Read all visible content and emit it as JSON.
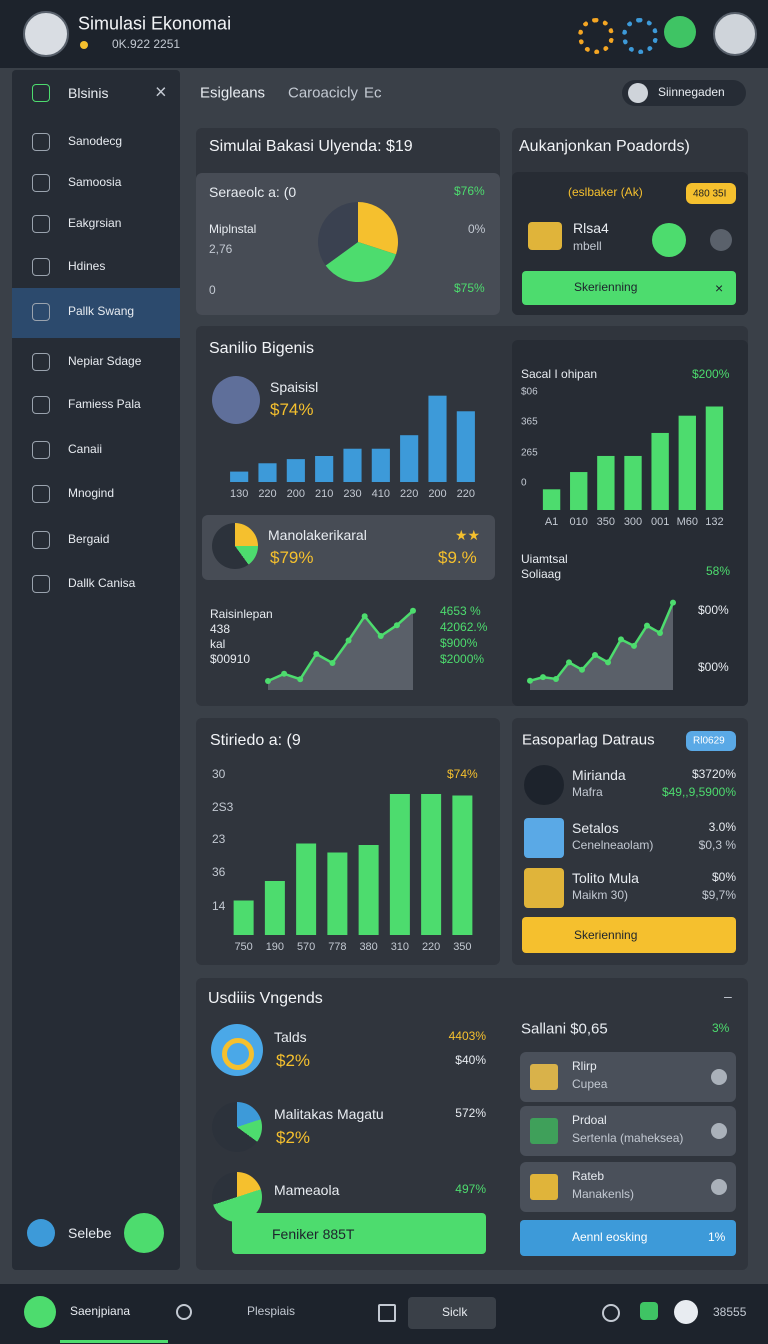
{
  "header": {
    "title": "Simulasi Ekonomai",
    "subtitle": "0K.922 2251"
  },
  "sidebar": {
    "title": "Blsinis",
    "items": [
      "Sanodecg",
      "Samoosia",
      "Eakgrsian",
      "Hdines",
      "Pallk Swang",
      "Nepiar Sdage",
      "Famiess Pala",
      "Canaii",
      "Mnogind",
      "Bergaid",
      "Dallk Canisa"
    ],
    "footer": "Selebe"
  },
  "tabs": [
    "Esigleans",
    "Caroacicly",
    "Ec"
  ],
  "user": "Siinnegaden",
  "panel1": {
    "title": "Simulai Bakasi Ulyenda: $19",
    "card_title": "Seraeolc a: (0",
    "label": "Miplnstal",
    "value": "2,76",
    "zero": "0",
    "right": [
      "$76%",
      "0%",
      "$75%"
    ],
    "pie": {
      "type": "pie",
      "values": [
        30,
        35,
        35
      ],
      "colors": [
        "#f5c02e",
        "#4ddc6e",
        "#3a4150"
      ]
    }
  },
  "panel2": {
    "title": "Aukanjonkan Poadords)",
    "tag": "(eslbaker (Ak)",
    "badge": "480 35I",
    "name": "Rlsa4",
    "sub": "mbell",
    "button": "Skerienning"
  },
  "panel3": {
    "title": "Sanilio Bigenis",
    "chart1": {
      "title": "Spaisisl",
      "value": "$74%",
      "type": "bar",
      "color": "#3d9ad9",
      "ylim": [
        0,
        100
      ],
      "values": [
        10,
        18,
        22,
        25,
        32,
        32,
        45,
        83,
        68
      ],
      "categories": [
        "130",
        "220",
        "200",
        "210",
        "230",
        "410",
        "220",
        "200",
        "220"
      ]
    },
    "chart2": {
      "title": "Sacal I ohipan",
      "value": "$200%",
      "ylabels": [
        "$06",
        "365",
        "265",
        "0"
      ],
      "type": "bar",
      "color": "#4ddc6e",
      "ylim": [
        0,
        100
      ],
      "values": [
        18,
        33,
        47,
        47,
        67,
        82,
        90
      ],
      "categories": [
        "A1",
        "010",
        "350",
        "300",
        "001",
        "M60",
        "132"
      ]
    },
    "card": {
      "title": "Manolakerikaral",
      "value": "$79%",
      "right": "$9.%"
    },
    "line1": {
      "labels": [
        "Raisinlepan",
        "438",
        "kal",
        "$00910"
      ],
      "right": [
        "4653 %",
        "42062.%",
        "$900%",
        "$2000%"
      ],
      "type": "line",
      "color": "#4ddc6e",
      "ylim": [
        0,
        100
      ],
      "values": [
        10,
        18,
        12,
        40,
        30,
        55,
        82,
        60,
        72,
        88
      ]
    },
    "line2": {
      "labels": [
        "Uiamtsal",
        "Soliaag"
      ],
      "value": "58%",
      "right": [
        "$00%",
        "$00%"
      ],
      "type": "line",
      "color": "#4ddc6e",
      "ylim": [
        0,
        100
      ],
      "values": [
        10,
        14,
        12,
        30,
        22,
        38,
        30,
        55,
        48,
        70,
        62,
        95
      ]
    }
  },
  "panel4": {
    "title": "Stiriedo a: (9",
    "value": "$74%",
    "ylabels": [
      "30",
      "2S3",
      "23",
      "36",
      "14"
    ],
    "chart": {
      "type": "bar",
      "color": "#4ddc6e",
      "ylim": [
        0,
        100
      ],
      "values": [
        23,
        36,
        61,
        55,
        60,
        94,
        94,
        93
      ],
      "categories": [
        "750",
        "190",
        "570",
        "778",
        "380",
        "310",
        "220",
        "350"
      ]
    }
  },
  "panel5": {
    "title": "Easoparlag Datraus",
    "badge": "Rl0629",
    "rows": [
      {
        "name": "Mirianda",
        "sub": "Mafra",
        "value": "$3720%",
        "change": "$49,,9,5900%"
      },
      {
        "name": "Setalos",
        "sub": "Cenelneaolam)",
        "value": "3.0%",
        "change": "$0,3 %"
      },
      {
        "name": "Tolito Mula",
        "sub": "Maikm 30)",
        "value": "$0%",
        "change": "$9,7%"
      }
    ],
    "button": "Skerienning"
  },
  "panel6": {
    "title": "Usdiiis Vngends",
    "items": [
      {
        "name": "Talds",
        "value": "$2%",
        "right": "4403%",
        "right2": "$40%"
      },
      {
        "name": "Malitakas Magatu",
        "value": "$2%",
        "right": "572%"
      },
      {
        "name": "Mameaola",
        "right": "497%"
      }
    ],
    "button": "Feniker 885T",
    "side_title": "Sallani $0,65",
    "side_value": "3%",
    "list": [
      {
        "name": "Rlirp",
        "sub": "Cupea"
      },
      {
        "name": "Prdoal",
        "sub": "Sertenla (maheksea)"
      },
      {
        "name": "Rateb",
        "sub": "Manakenls)"
      }
    ],
    "side_button": "Aennl eosking",
    "side_button_value": "1%"
  },
  "nav": {
    "home": "Saenjpiana",
    "search": "Plespiais",
    "pill": "Siclk",
    "count": "38555"
  }
}
